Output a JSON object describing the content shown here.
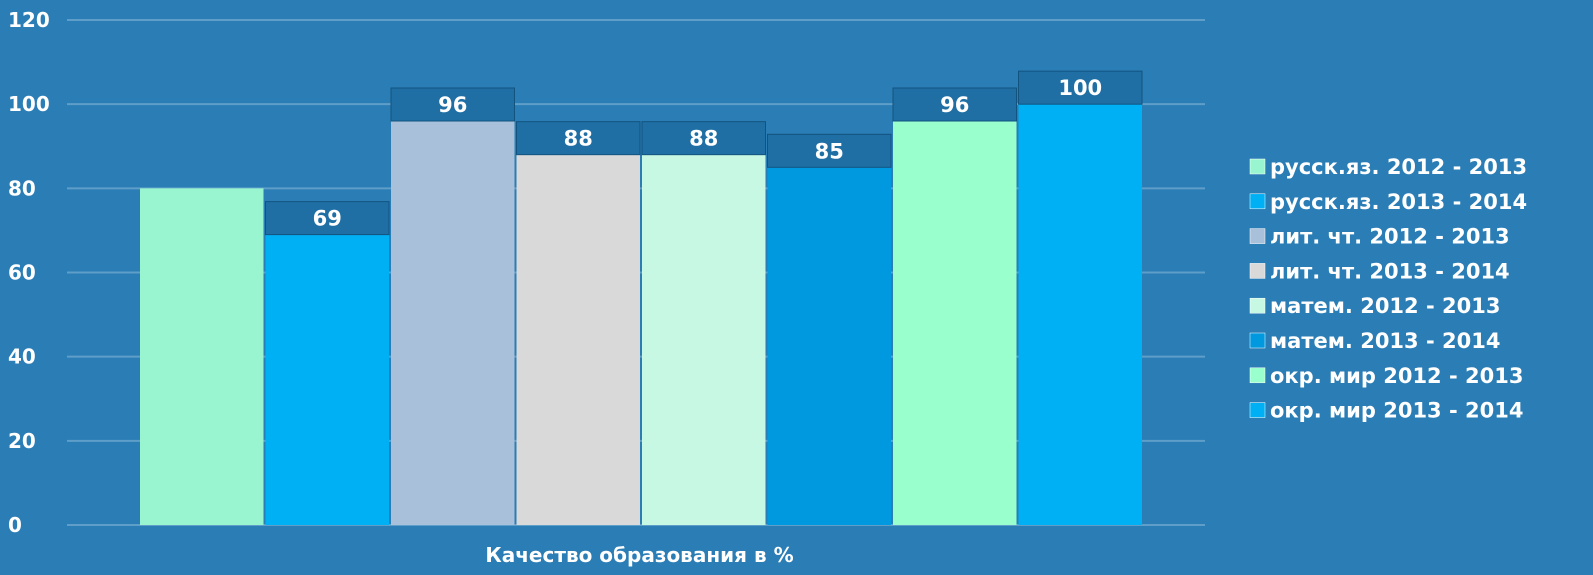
{
  "chart_data": {
    "type": "bar",
    "categories": [
      "Качество образования в %"
    ],
    "series": [
      {
        "name": "русск.яз. 2012 - 2013",
        "values": [
          80
        ],
        "color": "#98f5cf",
        "label": ""
      },
      {
        "name": "русск.яз. 2013 - 2014",
        "values": [
          69
        ],
        "color": "#00b0f5",
        "label": "69"
      },
      {
        "name": "лит. чт. 2012 - 2013",
        "values": [
          96
        ],
        "color": "#a8c0d9",
        "label": "96"
      },
      {
        "name": "лит. чт. 2013 - 2014",
        "values": [
          88
        ],
        "color": "#d9d9d9",
        "label": "88"
      },
      {
        "name": "матем. 2012 - 2013",
        "values": [
          88
        ],
        "color": "#c6f8e3",
        "label": "88"
      },
      {
        "name": "матем. 2013 - 2014",
        "values": [
          85
        ],
        "color": "#0099e0",
        "label": "85"
      },
      {
        "name": "окр. мир 2012 - 2013",
        "values": [
          96
        ],
        "color": "#99ffcc",
        "label": "96"
      },
      {
        "name": "окр. мир 2013 - 2014",
        "values": [
          100
        ],
        "color": "#00b0f5",
        "label": "100"
      }
    ],
    "ylim": [
      0,
      120
    ],
    "yticks": [
      0,
      20,
      40,
      60,
      80,
      100,
      120
    ],
    "ytick_labels": [
      "0",
      "20",
      "40",
      "60",
      "80",
      "100",
      "120"
    ],
    "grid": true,
    "legend": "right",
    "xlabel": "",
    "ylabel": "",
    "title": ""
  },
  "colors": {
    "background": "#2a7db5",
    "gridline": "#5f9ec9",
    "label_box": "#1f6fa5",
    "text": "#ffffff"
  }
}
